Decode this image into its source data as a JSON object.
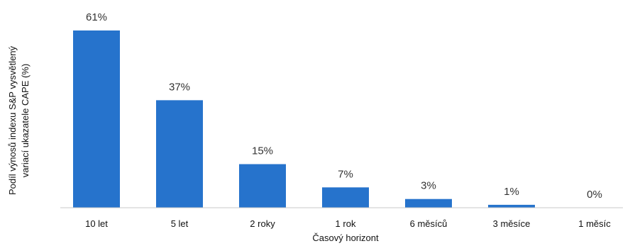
{
  "chart_data": {
    "type": "bar",
    "title": "",
    "xlabel": "Časový horizont",
    "ylabel_lines": [
      "Podíl výnosů indexu S&P vysvětlený",
      "variací ukazatele CAPE (%)"
    ],
    "categories": [
      "10 let",
      "5 let",
      "2 roky",
      "1 rok",
      "6 měsíců",
      "3 měsíce",
      "1 měsíc"
    ],
    "values": [
      61,
      37,
      15,
      7,
      3,
      1,
      0
    ],
    "data_labels": [
      "61%",
      "37%",
      "15%",
      "7%",
      "3%",
      "1%",
      "0%"
    ],
    "ylim": [
      0,
      61
    ],
    "grid": false,
    "legend": "none",
    "bar_color": "#2673cc"
  }
}
